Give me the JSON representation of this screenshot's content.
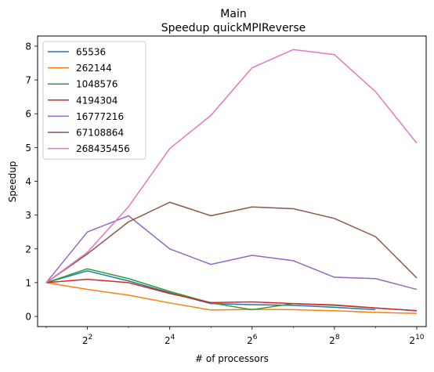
{
  "chart_data": {
    "type": "line",
    "title": "Main",
    "subtitle": "Speedup quickMPIReverse",
    "xlabel": "# of processors",
    "ylabel": "Speedup",
    "xscale": "log2",
    "xlim": [
      1.73,
      1200
    ],
    "ylim": [
      -0.3,
      8.3
    ],
    "x": [
      2,
      4,
      8,
      16,
      32,
      64,
      128,
      256,
      512,
      1024
    ],
    "xticks": [
      {
        "value": 4,
        "base": "2",
        "exp": "2"
      },
      {
        "value": 16,
        "base": "2",
        "exp": "4"
      },
      {
        "value": 64,
        "base": "2",
        "exp": "6"
      },
      {
        "value": 256,
        "base": "2",
        "exp": "8"
      },
      {
        "value": 1024,
        "base": "2",
        "exp": "10"
      }
    ],
    "yticks": [
      0,
      1,
      2,
      3,
      4,
      5,
      6,
      7,
      8
    ],
    "grid": false,
    "legend": "top-left",
    "series": [
      {
        "name": "65536",
        "color": "#1f77b4",
        "values": [
          1.0,
          1.35,
          1.05,
          0.7,
          0.38,
          0.35,
          0.33,
          0.27,
          0.2,
          null
        ]
      },
      {
        "name": "262144",
        "color": "#ff7f0e",
        "values": [
          1.0,
          0.8,
          0.63,
          0.4,
          0.19,
          0.21,
          0.2,
          0.17,
          0.12,
          0.09
        ]
      },
      {
        "name": "1048576",
        "color": "#2ca02c",
        "values": [
          1.0,
          1.41,
          1.12,
          0.74,
          0.4,
          0.2,
          0.38,
          0.33,
          0.25,
          0.17
        ]
      },
      {
        "name": "4194304",
        "color": "#d62728",
        "values": [
          1.0,
          1.1,
          1.0,
          0.68,
          0.41,
          0.43,
          0.38,
          0.34,
          0.25,
          0.17
        ]
      },
      {
        "name": "16777216",
        "color": "#9467bd",
        "values": [
          1.0,
          2.5,
          2.98,
          2.0,
          1.54,
          1.81,
          1.65,
          1.16,
          1.12,
          0.8
        ]
      },
      {
        "name": "67108864",
        "color": "#8c564b",
        "values": [
          1.0,
          1.85,
          2.8,
          3.38,
          2.98,
          3.24,
          3.19,
          2.9,
          2.36,
          1.14
        ]
      },
      {
        "name": "268435456",
        "color": "#e377c2",
        "values": [
          1.0,
          1.9,
          3.25,
          4.97,
          5.95,
          7.36,
          7.9,
          7.75,
          6.65,
          5.13
        ]
      }
    ]
  }
}
